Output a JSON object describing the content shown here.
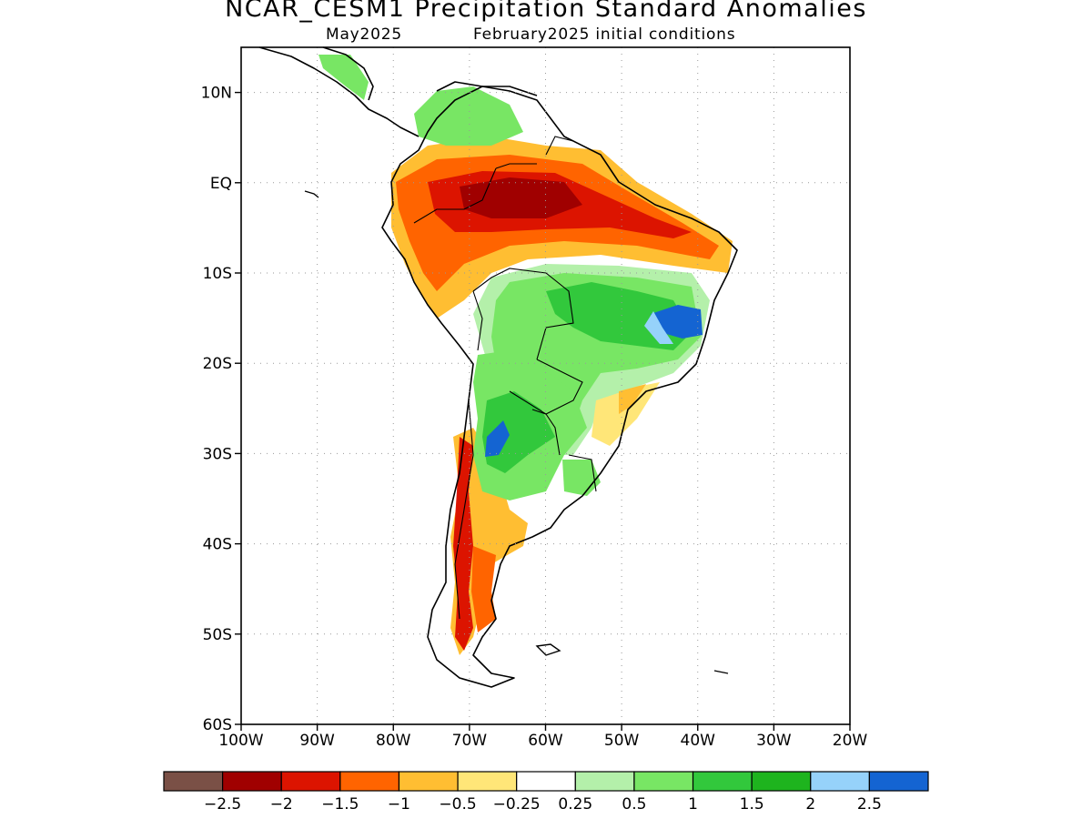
{
  "title": "NCAR_CESM1 Precipitation Standard Anomalies",
  "subtitle_left": "May2025",
  "subtitle_right": "February2025 initial conditions",
  "axes": {
    "lon_labels": [
      "100W",
      "90W",
      "80W",
      "70W",
      "60W",
      "50W",
      "40W",
      "30W",
      "20W"
    ],
    "lat_labels": [
      "10N",
      "EQ",
      "10S",
      "20S",
      "30S",
      "40S",
      "50S",
      "60S"
    ],
    "lon_range": [
      -100,
      -20
    ],
    "lat_range": [
      -60,
      15
    ],
    "grid": "dotted"
  },
  "colorbar": {
    "colors": [
      "#7a5046",
      "#a00000",
      "#dc1400",
      "#ff6400",
      "#ffbe32",
      "#ffe678",
      "#ffffff",
      "#b4f0aa",
      "#78e664",
      "#32c83c",
      "#1eb41e",
      "#96d2fa",
      "#1464d2"
    ],
    "labels": [
      "-2.5",
      "-2",
      "-1.5",
      "-1",
      "-0.5",
      "-0.25",
      "0.25",
      "0.5",
      "1",
      "1.5",
      "2",
      "2.5"
    ]
  }
}
